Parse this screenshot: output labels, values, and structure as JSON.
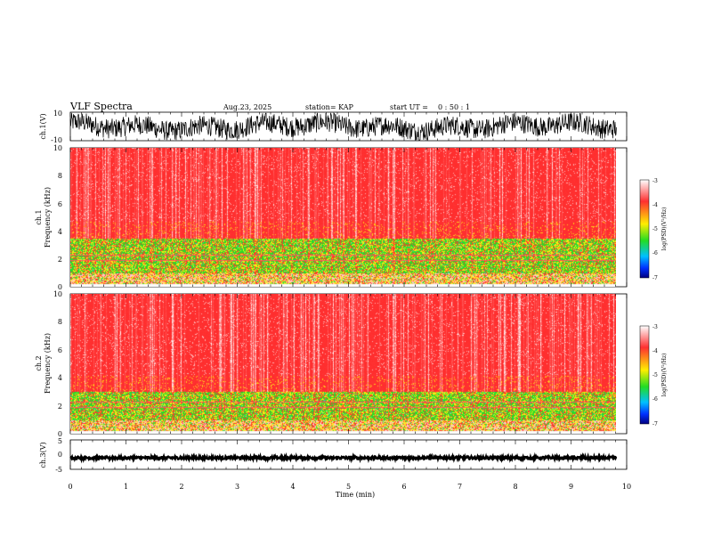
{
  "header": {
    "title": "VLF Spectra",
    "date": "Aug.23, 2025",
    "station": "station= KAP",
    "start_label": "start  UT =",
    "start_time": "0  : 50 : 1"
  },
  "chart_data": [
    {
      "type": "line",
      "name": "ch1-waveform",
      "ylabel": "ch.1(V)",
      "ylim": [
        -10,
        10
      ],
      "y_ticks": [
        "10",
        "-10"
      ],
      "description_values": "noisy waveform amplitude roughly between -10 and 10 V"
    },
    {
      "type": "heatmap",
      "name": "ch1-spectrogram",
      "ylabel_channel": "ch.1",
      "ylabel": "Frequency (kHz)",
      "ylim": [
        0,
        10
      ],
      "y_ticks": [
        "0",
        "2",
        "4",
        "6",
        "8",
        "10"
      ],
      "colorbar": {
        "label": "log(PSD)(V²/Hz)",
        "range": [
          -7,
          -3
        ],
        "ticks": [
          "-3",
          "-4",
          "-5",
          "-6",
          "-7"
        ]
      },
      "bands": [
        {
          "from_khz": 0.0,
          "to_khz": 1.0,
          "level": "mixed"
        },
        {
          "from_khz": 1.0,
          "to_khz": 3.5,
          "level": "low (green/yellow)"
        },
        {
          "from_khz": 3.5,
          "to_khz": 10.0,
          "level": "high (red)"
        }
      ]
    },
    {
      "type": "heatmap",
      "name": "ch2-spectrogram",
      "ylabel_channel": "ch.2",
      "ylabel": "Frequency (kHz)",
      "ylim": [
        0,
        10
      ],
      "y_ticks": [
        "0",
        "2",
        "4",
        "6",
        "8",
        "10"
      ],
      "colorbar": {
        "label": "log(PSD)(V²/Hz)",
        "range": [
          -7,
          -3
        ],
        "ticks": [
          "-3",
          "-4",
          "-5",
          "-6",
          "-7"
        ]
      },
      "bands": [
        {
          "from_khz": 0.0,
          "to_khz": 1.0,
          "level": "mixed"
        },
        {
          "from_khz": 1.0,
          "to_khz": 3.0,
          "level": "low (green/yellow)"
        },
        {
          "from_khz": 3.0,
          "to_khz": 10.0,
          "level": "high (red)"
        }
      ]
    },
    {
      "type": "line",
      "name": "ch3-waveform",
      "ylabel": "ch.3(V)",
      "ylim": [
        -5,
        5
      ],
      "y_ticks": [
        "5",
        "0",
        "-5"
      ],
      "description_values": "thick flat trace near -1 V"
    }
  ],
  "x_axis": {
    "label": "Time (min)",
    "range": [
      0,
      10
    ],
    "data_end_min": 9.82,
    "ticks": [
      "0",
      "1",
      "2",
      "3",
      "4",
      "5",
      "6",
      "7",
      "8",
      "9",
      "10"
    ]
  },
  "colors": {
    "high": "#ff2020",
    "mid": "#ffee00",
    "low": "#22dd22",
    "min": "#0000b0"
  }
}
